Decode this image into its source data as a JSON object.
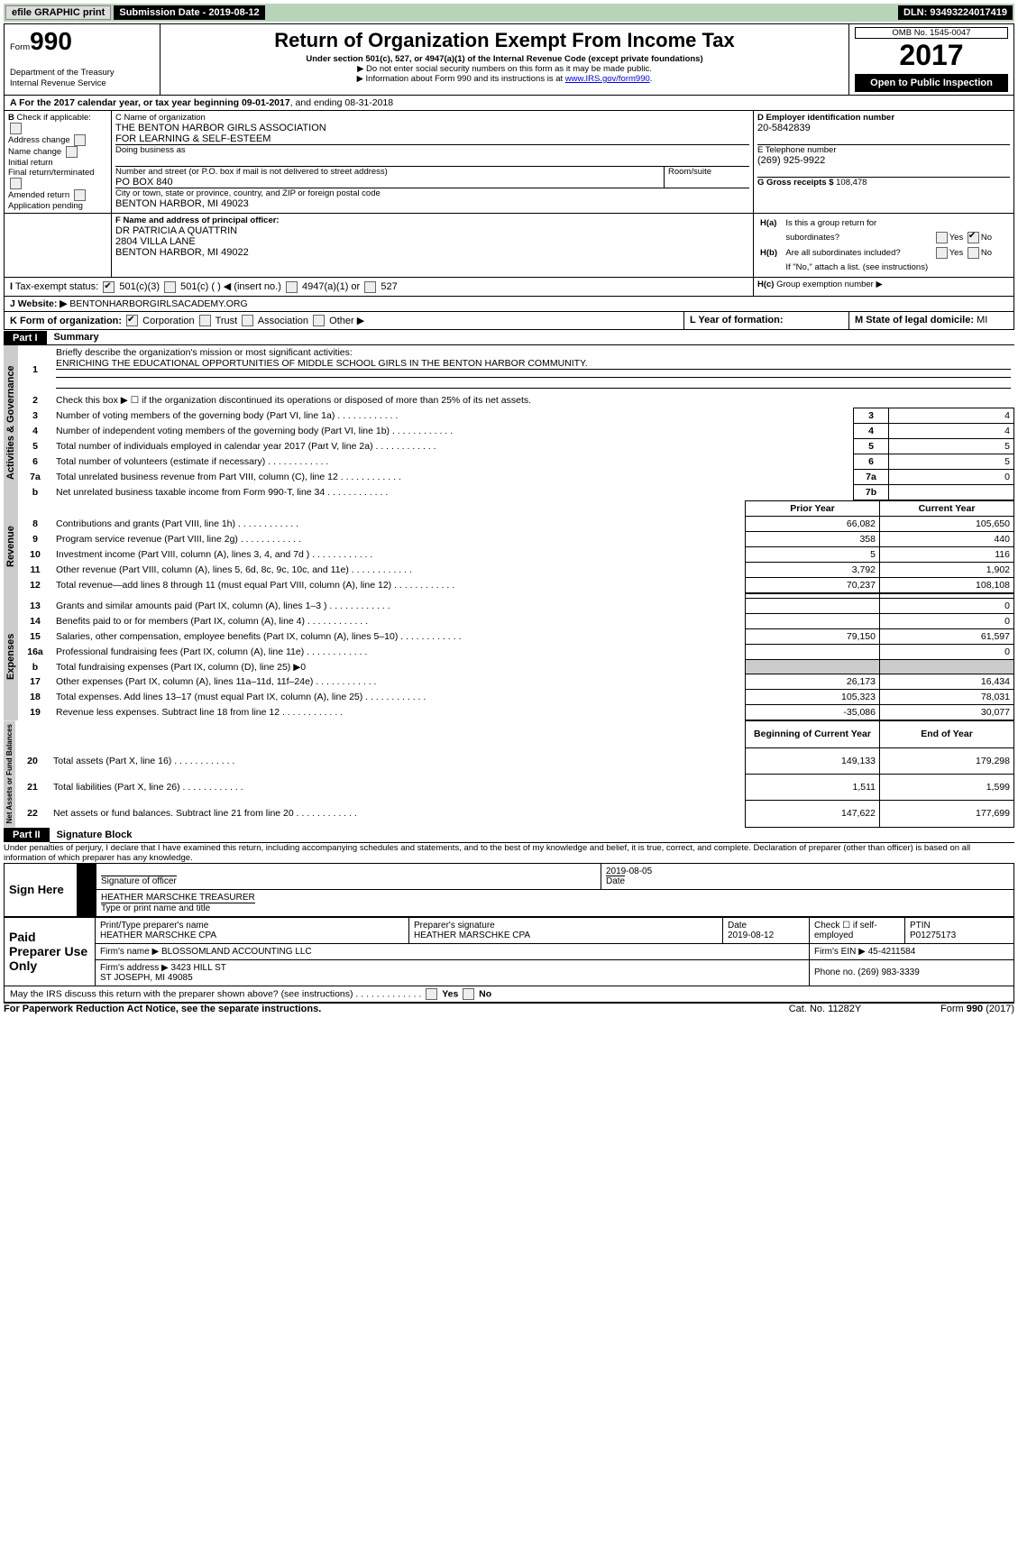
{
  "topbar": {
    "efile": "efile GRAPHIC print",
    "sub_lbl": "Submission Date - ",
    "sub_val": "2019-08-12",
    "dln_lbl": "DLN: ",
    "dln_val": "93493224017419"
  },
  "header": {
    "form_small": "Form",
    "form_big": "990",
    "dept": "Department of the Treasury",
    "irs": "Internal Revenue Service",
    "title": "Return of Organization Exempt From Income Tax",
    "sub": "Under section 501(c), 527, or 4947(a)(1) of the Internal Revenue Code (except private foundations)",
    "b1": "▶ Do not enter social security numbers on this form as it may be made public.",
    "b2_pre": "▶ Information about Form 990 and its instructions is at ",
    "b2_link": "www.IRS.gov/form990",
    "b2_post": ".",
    "omb": "OMB No. 1545-0047",
    "year": "2017",
    "pub": "Open to Public Inspection"
  },
  "a": {
    "text": "For the 2017 calendar year, or tax year beginning 09-01-2017",
    "mid": ", and ending 08-31-2018"
  },
  "b": {
    "hdr": "Check if applicable:",
    "addr": "Address change",
    "name": "Name change",
    "init": "Initial return",
    "fin": "Final return/terminated",
    "amend": "Amended return",
    "app": "Application pending"
  },
  "c": {
    "lbl": "C Name of organization",
    "v1": "THE BENTON HARBOR GIRLS ASSOCIATION",
    "v2": "FOR LEARNING & SELF-ESTEEM",
    "dba": "Doing business as",
    "st_lbl": "Number and street (or P.O. box if mail is not delivered to street address)",
    "rm": "Room/suite",
    "st": "PO BOX 840",
    "city_lbl": "City or town, state or province, country, and ZIP or foreign postal code",
    "city": "BENTON HARBOR, MI  49023"
  },
  "d": {
    "lbl": "D Employer identification number",
    "v": "20-5842839"
  },
  "e": {
    "lbl": "E Telephone number",
    "v": "(269) 925-9922"
  },
  "g": {
    "lbl": "G Gross receipts $ ",
    "v": "108,478"
  },
  "f": {
    "lbl": "F Name and address of principal officer:",
    "n": "DR PATRICIA A QUATTRIN",
    "a1": "2804 VILLA LANE",
    "a2": "BENTON HARBOR, MI  49022"
  },
  "h": {
    "a": "Is this a group return for",
    "a2": "subordinates?",
    "b": "Are all subordinates included?",
    "bnote": "If \"No,\" attach a list. (see instructions)",
    "c": "Group exemption number ▶",
    "yes": "Yes",
    "no": "No"
  },
  "i": {
    "lbl": "Tax-exempt status:",
    "c3": "501(c)(3)",
    "c": "501(c) (  ) ◀ (insert no.)",
    "a1": "4947(a)(1) or",
    "s": "527"
  },
  "j": {
    "lbl": "Website: ▶",
    "v": "BENTONHARBORGIRLSACADEMY.ORG"
  },
  "k": {
    "lbl": "K Form of organization:",
    "corp": "Corporation",
    "trust": "Trust",
    "assoc": "Association",
    "other": "Other ▶"
  },
  "l": {
    "lbl": "L Year of formation:"
  },
  "m": {
    "lbl": "M State of legal domicile: ",
    "v": "MI"
  },
  "part1": {
    "n": "Part I",
    "t": "Summary"
  },
  "sum": {
    "l1": "Briefly describe the organization's mission or most significant activities:",
    "l1v": "ENRICHING THE EDUCATIONAL OPPORTUNITIES OF MIDDLE SCHOOL GIRLS IN THE BENTON HARBOR COMMUNITY.",
    "l2": "Check this box ▶ ☐  if the organization discontinued its operations or disposed of more than 25% of its net assets.",
    "r": [
      {
        "n": "3",
        "t": "Number of voting members of the governing body (Part VI, line 1a)",
        "c": "3",
        "v": "4"
      },
      {
        "n": "4",
        "t": "Number of independent voting members of the governing body (Part VI, line 1b)",
        "c": "4",
        "v": "4"
      },
      {
        "n": "5",
        "t": "Total number of individuals employed in calendar year 2017 (Part V, line 2a)",
        "c": "5",
        "v": "5"
      },
      {
        "n": "6",
        "t": "Total number of volunteers (estimate if necessary)",
        "c": "6",
        "v": "5"
      },
      {
        "n": "7a",
        "t": "Total unrelated business revenue from Part VIII, column (C), line 12",
        "c": "7a",
        "v": "0"
      },
      {
        "n": "b",
        "t": "Net unrelated business taxable income from Form 990-T, line 34",
        "c": "7b",
        "v": ""
      }
    ],
    "hdr_py": "Prior Year",
    "hdr_cy": "Current Year",
    "rev": [
      {
        "n": "8",
        "t": "Contributions and grants (Part VIII, line 1h)",
        "p": "66,082",
        "c": "105,650"
      },
      {
        "n": "9",
        "t": "Program service revenue (Part VIII, line 2g)",
        "p": "358",
        "c": "440"
      },
      {
        "n": "10",
        "t": "Investment income (Part VIII, column (A), lines 3, 4, and 7d )",
        "p": "5",
        "c": "116"
      },
      {
        "n": "11",
        "t": "Other revenue (Part VIII, column (A), lines 5, 6d, 8c, 9c, 10c, and 11e)",
        "p": "3,792",
        "c": "1,902"
      },
      {
        "n": "12",
        "t": "Total revenue—add lines 8 through 11 (must equal Part VIII, column (A), line 12)",
        "p": "70,237",
        "c": "108,108"
      }
    ],
    "exp": [
      {
        "n": "13",
        "t": "Grants and similar amounts paid (Part IX, column (A), lines 1–3 )",
        "p": "",
        "c": "0"
      },
      {
        "n": "14",
        "t": "Benefits paid to or for members (Part IX, column (A), line 4)",
        "p": "",
        "c": "0"
      },
      {
        "n": "15",
        "t": "Salaries, other compensation, employee benefits (Part IX, column (A), lines 5–10)",
        "p": "79,150",
        "c": "61,597"
      },
      {
        "n": "16a",
        "t": "Professional fundraising fees (Part IX, column (A), line 11e)",
        "p": "",
        "c": "0"
      },
      {
        "n": "b",
        "t": "Total fundraising expenses (Part IX, column (D), line 25) ▶0",
        "p": "G",
        "c": "G"
      },
      {
        "n": "17",
        "t": "Other expenses (Part IX, column (A), lines 11a–11d, 11f–24e)",
        "p": "26,173",
        "c": "16,434"
      },
      {
        "n": "18",
        "t": "Total expenses. Add lines 13–17 (must equal Part IX, column (A), line 25)",
        "p": "105,323",
        "c": "78,031"
      },
      {
        "n": "19",
        "t": "Revenue less expenses. Subtract line 18 from line 12",
        "p": "-35,086",
        "c": "30,077"
      }
    ],
    "hdr_by": "Beginning of Current Year",
    "hdr_ey": "End of Year",
    "na": [
      {
        "n": "20",
        "t": "Total assets (Part X, line 16)",
        "p": "149,133",
        "c": "179,298"
      },
      {
        "n": "21",
        "t": "Total liabilities (Part X, line 26)",
        "p": "1,511",
        "c": "1,599"
      },
      {
        "n": "22",
        "t": "Net assets or fund balances. Subtract line 21 from line 20",
        "p": "147,622",
        "c": "177,699"
      }
    ],
    "tab1": "Activities & Governance",
    "tab2": "Revenue",
    "tab3": "Expenses",
    "tab4": "Net Assets or Fund Balances"
  },
  "part2": {
    "n": "Part II",
    "t": "Signature Block"
  },
  "sig": {
    "decl": "Under penalties of perjury, I declare that I have examined this return, including accompanying schedules and statements, and to the best of my knowledge and belief, it is true, correct, and complete. Declaration of preparer (other than officer) is based on all information of which preparer has any knowledge.",
    "here": "Sign Here",
    "sig": "Signature of officer",
    "date": "Date",
    "dv": "2019-08-05",
    "name": "HEATHER MARSCHKE  TREASURER",
    "name_lbl": "Type or print name and title",
    "paid": "Paid Preparer Use Only",
    "pt": "Print/Type preparer's name",
    "pn": "HEATHER MARSCHKE CPA",
    "ps": "Preparer's signature",
    "psv": "HEATHER MARSCHKE CPA",
    "pd": "Date",
    "pdv": "2019-08-12",
    "chk": "Check ☐ if self-employed",
    "ptin": "PTIN",
    "ptinv": "P01275173",
    "firm": "Firm's name     ▶ ",
    "firmv": "BLOSSOMLAND ACCOUNTING LLC",
    "ein": "Firm's EIN ▶ ",
    "einv": "45-4211584",
    "addr": "Firm's address ▶ ",
    "addrv": "3423 HILL ST",
    "addr2": "ST JOSEPH, MI  49085",
    "phone": "Phone no. ",
    "phonev": "(269) 983-3339",
    "may": "May the IRS discuss this return with the preparer shown above? (see instructions)",
    "yes": "Yes",
    "no": "No"
  },
  "foot": {
    "l": "For Paperwork Reduction Act Notice, see the separate instructions.",
    "c": "Cat. No. 11282Y",
    "r": "Form 990 (2017)"
  }
}
